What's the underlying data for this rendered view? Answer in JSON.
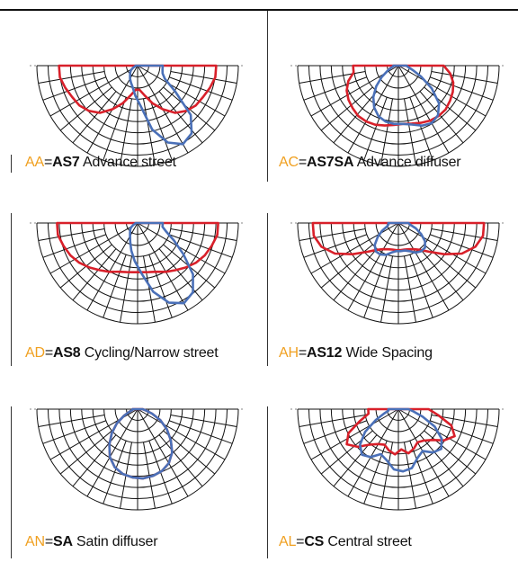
{
  "colors": {
    "code": "#f0a020",
    "red_curve": "#d8202a",
    "blue_curve": "#4a70b8",
    "grid": "#111111"
  },
  "panels": [
    {
      "code": "AA",
      "eq": "=",
      "model": "AS7",
      "desc": " Advance street",
      "curves": [
        {
          "name": "red",
          "r": [
            0.78,
            0.78,
            0.75,
            0.72,
            0.7,
            0.66,
            0.6,
            0.5,
            0.4,
            0.3,
            0.24,
            0.24,
            0.3,
            0.4,
            0.5,
            0.6,
            0.66,
            0.7,
            0.72,
            0.75,
            0.78,
            0.78
          ]
        },
        {
          "name": "blue",
          "r": [
            0.25,
            0.25,
            0.26,
            0.3,
            0.45,
            0.72,
            0.86,
            0.9,
            0.82,
            0.65,
            0.4,
            0.3,
            0.22,
            0.18,
            0.15,
            0.12,
            0.1,
            0.08,
            0.05,
            0.03,
            0.02,
            0.02
          ]
        }
      ]
    },
    {
      "code": "AC",
      "eq": "=",
      "model": "AS7SA",
      "desc": " Advance diffuser",
      "curves": [
        {
          "name": "red",
          "r": [
            0.45,
            0.52,
            0.57,
            0.6,
            0.62,
            0.64,
            0.64,
            0.63,
            0.61,
            0.59,
            0.58,
            0.59,
            0.61,
            0.63,
            0.64,
            0.64,
            0.62,
            0.6,
            0.57,
            0.52,
            0.45,
            0.45
          ]
        },
        {
          "name": "blue",
          "r": [
            0.08,
            0.1,
            0.15,
            0.25,
            0.4,
            0.55,
            0.63,
            0.66,
            0.64,
            0.6,
            0.58,
            0.58,
            0.57,
            0.54,
            0.48,
            0.4,
            0.3,
            0.2,
            0.12,
            0.08,
            0.05,
            0.05
          ]
        }
      ]
    },
    {
      "code": "AD",
      "eq": "=",
      "model": "AS8",
      "desc": " Cycling/Narrow street",
      "curves": [
        {
          "name": "red",
          "r": [
            0.8,
            0.8,
            0.77,
            0.74,
            0.7,
            0.65,
            0.6,
            0.56,
            0.52,
            0.5,
            0.49,
            0.49,
            0.5,
            0.52,
            0.56,
            0.6,
            0.65,
            0.7,
            0.74,
            0.77,
            0.8,
            0.8
          ]
        },
        {
          "name": "blue",
          "r": [
            0.25,
            0.25,
            0.3,
            0.4,
            0.55,
            0.75,
            0.88,
            0.92,
            0.85,
            0.7,
            0.5,
            0.38,
            0.28,
            0.2,
            0.15,
            0.12,
            0.1,
            0.08,
            0.05,
            0.03,
            0.02,
            0.02
          ]
        }
      ]
    },
    {
      "code": "AH",
      "eq": "=",
      "model": "AS12",
      "desc": " Wide Spacing",
      "curves": [
        {
          "name": "red",
          "r": [
            0.85,
            0.85,
            0.8,
            0.7,
            0.55,
            0.42,
            0.34,
            0.3,
            0.28,
            0.27,
            0.27,
            0.27,
            0.27,
            0.28,
            0.3,
            0.34,
            0.42,
            0.55,
            0.7,
            0.8,
            0.85,
            0.85
          ]
        },
        {
          "name": "blue",
          "r": [
            0.1,
            0.12,
            0.18,
            0.25,
            0.32,
            0.36,
            0.36,
            0.34,
            0.3,
            0.28,
            0.28,
            0.28,
            0.3,
            0.34,
            0.36,
            0.36,
            0.32,
            0.25,
            0.18,
            0.12,
            0.1,
            0.1
          ]
        }
      ]
    },
    {
      "code": "AN",
      "eq": "=",
      "model": "SA",
      "desc": " Satin diffuser",
      "curves": [
        {
          "name": "red",
          "r": [
            0.05,
            0.08,
            0.15,
            0.25,
            0.35,
            0.45,
            0.55,
            0.62,
            0.66,
            0.68,
            0.69,
            0.68,
            0.66,
            0.62,
            0.55,
            0.45,
            0.35,
            0.25,
            0.15,
            0.08,
            0.05,
            0.05
          ]
        },
        {
          "name": "blue",
          "r": [
            0.05,
            0.08,
            0.15,
            0.25,
            0.35,
            0.45,
            0.55,
            0.62,
            0.66,
            0.68,
            0.69,
            0.68,
            0.66,
            0.62,
            0.55,
            0.45,
            0.35,
            0.25,
            0.15,
            0.08,
            0.05,
            0.05
          ]
        }
      ]
    },
    {
      "code": "AL",
      "eq": "=",
      "model": "CS",
      "desc": " Central street",
      "curves": [
        {
          "name": "red",
          "r": [
            0.3,
            0.4,
            0.55,
            0.62,
            0.55,
            0.45,
            0.4,
            0.38,
            0.42,
            0.45,
            0.4,
            0.45,
            0.42,
            0.38,
            0.4,
            0.45,
            0.55,
            0.62,
            0.55,
            0.4,
            0.3,
            0.3
          ]
        },
        {
          "name": "blue",
          "r": [
            0.1,
            0.15,
            0.25,
            0.4,
            0.52,
            0.58,
            0.55,
            0.48,
            0.52,
            0.6,
            0.62,
            0.6,
            0.52,
            0.48,
            0.55,
            0.58,
            0.52,
            0.4,
            0.25,
            0.15,
            0.1,
            0.1
          ]
        }
      ]
    }
  ]
}
